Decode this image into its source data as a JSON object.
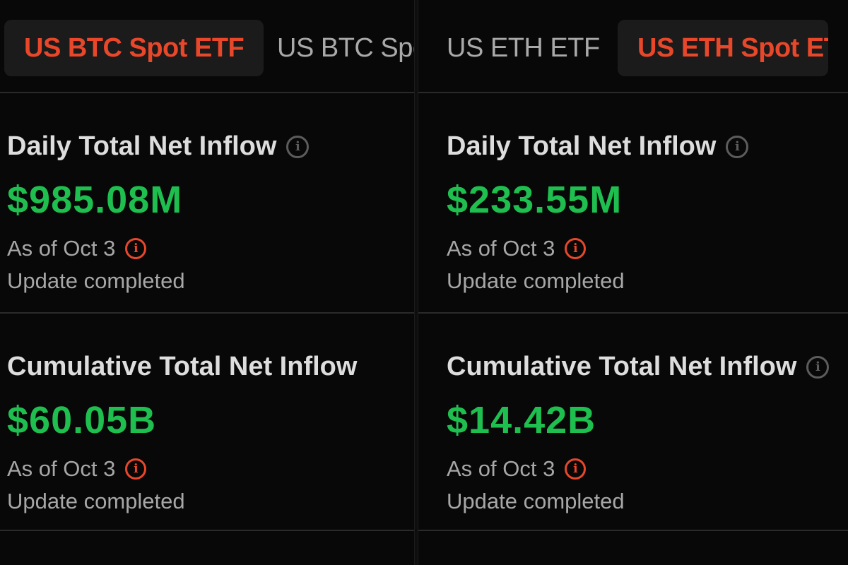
{
  "left": {
    "tabs": [
      {
        "label": "US BTC Spot ETF",
        "active": true
      },
      {
        "label": "US BTC Spo",
        "active": false
      }
    ],
    "daily": {
      "heading": "Daily Total Net Inflow",
      "value": "$985.08M",
      "as_of": "As of Oct 3",
      "status": "Update completed"
    },
    "cumulative": {
      "heading": "Cumulative Total Net Inflow",
      "value": "$60.05B",
      "as_of": "As of Oct 3",
      "status": "Update completed"
    }
  },
  "right": {
    "tabs": [
      {
        "label": "US ETH ETF",
        "active": false
      },
      {
        "label": "US ETH Spot ET",
        "active": true
      }
    ],
    "daily": {
      "heading": "Daily Total Net Inflow",
      "value": "$233.55M",
      "as_of": "As of Oct 3",
      "status": "Update completed"
    },
    "cumulative": {
      "heading": "Cumulative Total Net Inflow",
      "value": "$14.42B",
      "as_of": "As of Oct 3",
      "status": "Update completed"
    }
  },
  "icons": {
    "info_glyph": "i",
    "info_color": "#5c5c5c",
    "warning_color": "#e8472a"
  },
  "colors": {
    "accent": "#e8472a",
    "positive": "#1fbf4f",
    "background": "#070707"
  }
}
